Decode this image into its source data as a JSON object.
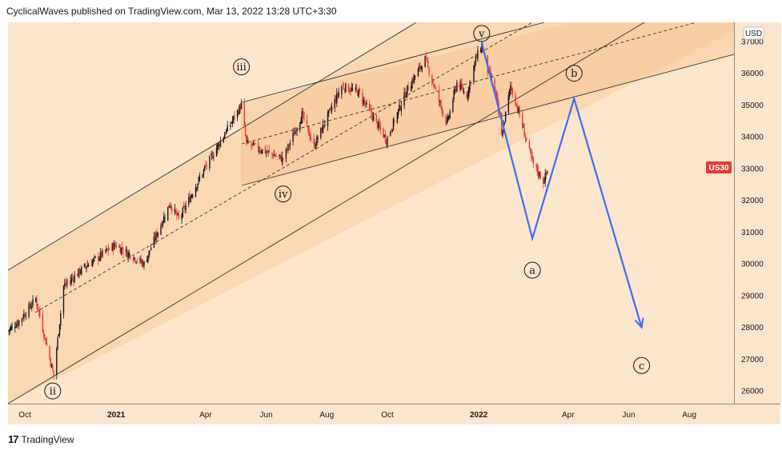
{
  "header": {
    "text": "CyclicalWaves published on TradingView.com, Mar 13, 2022 13:28 UTC+3:30"
  },
  "footer": {
    "logo_text": "17",
    "brand": "TradingView"
  },
  "colors": {
    "background": "#fce5cd",
    "channel_fill": "#f8cf9e",
    "bull": "#131722",
    "bear": "#e53935",
    "projection": "#3d6ef0",
    "badge": "#e53935"
  },
  "price_axis": {
    "unit": "USD",
    "ticks": [
      "37000",
      "36000",
      "35000",
      "34000",
      "33000",
      "32000",
      "31000",
      "30000",
      "29000",
      "28000",
      "27000",
      "26000"
    ],
    "symbol_badge": "US30"
  },
  "time_axis": {
    "ticks": [
      "Oct",
      "2021",
      "Apr",
      "Jun",
      "Aug",
      "Oct",
      "2022",
      "Apr",
      "Jun",
      "Aug"
    ]
  },
  "wave_labels": {
    "ii": "ii",
    "iii": "iii",
    "iv": "iv",
    "v": "v",
    "a": "a",
    "b": "b",
    "c": "c"
  },
  "chart_data": {
    "type": "line",
    "title": "",
    "symbol": "US30",
    "xlabel": "",
    "ylabel": "USD",
    "ylim": [
      25600,
      37600
    ],
    "x_range": [
      "2020-09-14",
      "2022-09-15"
    ],
    "grid": false,
    "series": [
      {
        "x": [
          "2020-09-14",
          "2020-09-25",
          "2020-10-12",
          "2020-10-30",
          "2020-11-09",
          "2020-11-30",
          "2020-12-31",
          "2021-01-29",
          "2021-02-24",
          "2021-03-05",
          "2021-03-31",
          "2021-05-07",
          "2021-05-12",
          "2021-06-18",
          "2021-07-07",
          "2021-07-19",
          "2021-08-16",
          "2021-09-02",
          "2021-09-30",
          "2021-10-21",
          "2021-11-08",
          "2021-11-30",
          "2021-12-10",
          "2021-12-20",
          "2021-12-29",
          "2022-01-04",
          "2022-01-10",
          "2022-01-18",
          "2022-01-24",
          "2022-02-02",
          "2022-02-10",
          "2022-02-24",
          "2022-03-07",
          "2022-03-11"
        ],
        "values": [
          27900,
          28200,
          28900,
          26500,
          29300,
          29900,
          30600,
          30000,
          31900,
          31400,
          33000,
          35000,
          33800,
          33300,
          34700,
          33700,
          35600,
          35400,
          33900,
          35500,
          36450,
          34400,
          35700,
          35300,
          36450,
          36900,
          36100,
          35400,
          34000,
          35600,
          34800,
          33200,
          32600,
          32900
        ]
      }
    ],
    "projection": {
      "x": [
        "2022-01-04",
        "2022-02-24",
        "2022-04-07",
        "2022-06-14"
      ],
      "values": [
        36950,
        30800,
        35200,
        28000
      ]
    },
    "annotations": [
      {
        "label": "ii",
        "x": "2020-10-29",
        "y": 26000
      },
      {
        "label": "iii",
        "x": "2021-05-07",
        "y": 36200
      },
      {
        "label": "iv",
        "x": "2021-06-18",
        "y": 32200
      },
      {
        "label": "v",
        "x": "2022-01-04",
        "y": 37250
      },
      {
        "label": "a",
        "x": "2022-02-24",
        "y": 29800
      },
      {
        "label": "b",
        "x": "2022-04-07",
        "y": 36000
      },
      {
        "label": "c",
        "x": "2022-06-14",
        "y": 26800
      }
    ],
    "price_tag": "US30"
  }
}
